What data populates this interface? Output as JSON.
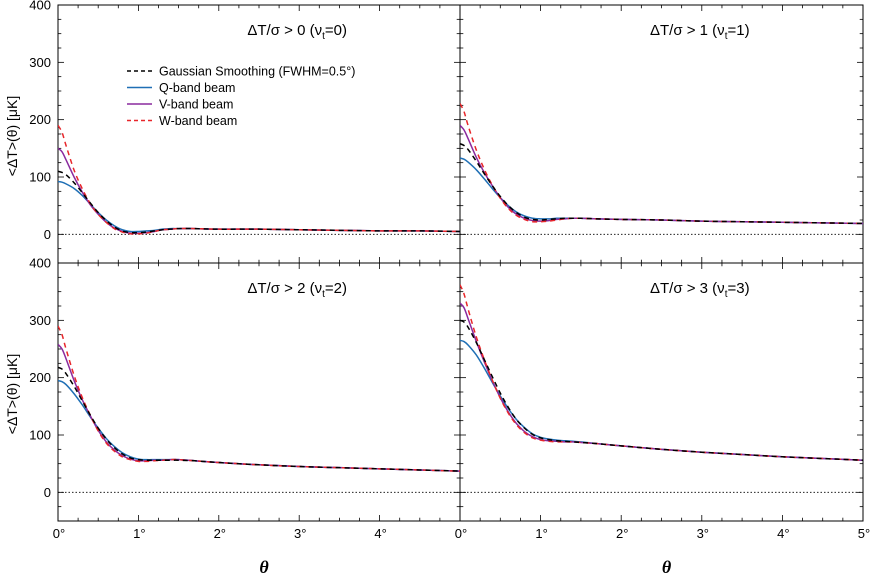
{
  "chart_data": {
    "type": "line",
    "xlabel": "θ",
    "ylabel": "<ΔT>(θ) [μK]",
    "xlim": [
      0,
      5
    ],
    "ylim": [
      -50,
      400
    ],
    "x_ticks": [
      "0°",
      "1°",
      "2°",
      "3°",
      "4°"
    ],
    "x_ticks_right": [
      "0°",
      "1°",
      "2°",
      "3°",
      "4°",
      "5°"
    ],
    "y_ticks": [
      "0",
      "100",
      "200",
      "300",
      "400"
    ],
    "legend": {
      "placement": "top-left of first panel",
      "entries": [
        {
          "label": "Gaussian Smoothing (FWHM=0.5°)",
          "color": "#000000",
          "dash": "dashed"
        },
        {
          "label": "Q-band beam",
          "color": "#1f6fb5",
          "dash": "solid"
        },
        {
          "label": "V-band beam",
          "color": "#8a2a9e",
          "dash": "solid"
        },
        {
          "label": "W-band beam",
          "color": "#e8262a",
          "dash": "dashed"
        }
      ]
    },
    "reference_line": {
      "y": 0,
      "style": "dotted"
    },
    "panels": [
      {
        "title_main": "ΔT/σ > 0 (ν",
        "title_sub": "t",
        "title_end": "=0)",
        "x": [
          0,
          0.05,
          0.1,
          0.2,
          0.3,
          0.4,
          0.5,
          0.6,
          0.7,
          0.8,
          0.9,
          1.0,
          1.1,
          1.2,
          1.3,
          1.4,
          1.5,
          1.7,
          2.0,
          2.5,
          3.0,
          3.5,
          4.0,
          4.5,
          5.0
        ],
        "series": [
          {
            "name": "Gaussian Smoothing (FWHM=0.5°)",
            "values": [
              110,
              108,
              104,
              90,
              73,
              55,
              38,
              24,
              13,
              6,
              3,
              3,
              4,
              6,
              8,
              9,
              10,
              10,
              9,
              9,
              8,
              7,
              6,
              6,
              5
            ]
          },
          {
            "name": "Q-band beam",
            "values": [
              92,
              91,
              88,
              80,
              68,
              53,
              38,
              25,
              15,
              8,
              5,
              5,
              6,
              7,
              9,
              10,
              10,
              10,
              9,
              9,
              8,
              7,
              6,
              6,
              5
            ]
          },
          {
            "name": "V-band beam",
            "values": [
              150,
              144,
              130,
              100,
              74,
              52,
              35,
              21,
              11,
              5,
              2,
              2,
              3,
              5,
              8,
              9,
              10,
              10,
              9,
              9,
              8,
              7,
              6,
              6,
              5
            ]
          },
          {
            "name": "W-band beam",
            "values": [
              190,
              178,
              155,
              112,
              80,
              54,
              35,
              21,
              10,
              4,
              1,
              1,
              2,
              5,
              8,
              9,
              10,
              10,
              9,
              9,
              8,
              7,
              6,
              6,
              5
            ]
          }
        ]
      },
      {
        "title_main": "ΔT/σ > 1 (ν",
        "title_sub": "t",
        "title_end": "=1)",
        "x": [
          0,
          0.05,
          0.1,
          0.2,
          0.3,
          0.4,
          0.5,
          0.6,
          0.7,
          0.8,
          0.9,
          1.0,
          1.1,
          1.2,
          1.3,
          1.4,
          1.5,
          1.7,
          2.0,
          2.5,
          3.0,
          3.5,
          4.0,
          4.5,
          5.0
        ],
        "series": [
          {
            "name": "Gaussian Smoothing (FWHM=0.5°)",
            "values": [
              158,
              155,
              148,
              128,
              106,
              85,
              66,
              50,
              38,
              30,
              26,
              25,
              26,
              27,
              28,
              28,
              28,
              27,
              26,
              25,
              23,
              22,
              21,
              20,
              19
            ]
          },
          {
            "name": "Q-band beam",
            "values": [
              133,
              131,
              126,
              113,
              97,
              80,
              64,
              50,
              39,
              32,
              28,
              27,
              27,
              28,
              28,
              28,
              28,
              27,
              26,
              25,
              23,
              22,
              21,
              20,
              19
            ]
          },
          {
            "name": "V-band beam",
            "values": [
              190,
              182,
              167,
              135,
              108,
              85,
              64,
              47,
              35,
              28,
              24,
              23,
              24,
              26,
              27,
              28,
              28,
              27,
              26,
              25,
              23,
              22,
              21,
              20,
              19
            ]
          },
          {
            "name": "W-band beam",
            "values": [
              228,
              214,
              190,
              148,
              114,
              86,
              63,
              45,
              33,
              26,
              22,
              22,
              23,
              25,
              27,
              28,
              28,
              27,
              26,
              25,
              23,
              22,
              21,
              20,
              19
            ]
          }
        ]
      },
      {
        "title_main": "ΔT/σ > 2 (ν",
        "title_sub": "t",
        "title_end": "=2)",
        "x": [
          0,
          0.05,
          0.1,
          0.2,
          0.3,
          0.4,
          0.5,
          0.6,
          0.7,
          0.8,
          0.9,
          1.0,
          1.1,
          1.2,
          1.3,
          1.4,
          1.5,
          1.7,
          2.0,
          2.5,
          3.0,
          3.5,
          4.0,
          4.5,
          5.0
        ],
        "series": [
          {
            "name": "Gaussian Smoothing (FWHM=0.5°)",
            "values": [
              218,
              215,
              207,
              185,
              160,
              135,
              112,
              93,
              78,
              67,
              60,
              57,
              56,
              56,
              56,
              56,
              56,
              55,
              52,
              48,
              45,
              43,
              41,
              39,
              37
            ]
          },
          {
            "name": "Q-band beam",
            "values": [
              195,
              193,
              188,
              172,
              153,
              132,
              112,
              94,
              80,
              69,
              62,
              58,
              57,
              57,
              57,
              57,
              57,
              55,
              52,
              48,
              45,
              43,
              41,
              39,
              37
            ]
          },
          {
            "name": "V-band beam",
            "values": [
              258,
              250,
              233,
              195,
              162,
              134,
              108,
              88,
              74,
              64,
              58,
              55,
              55,
              56,
              56,
              57,
              57,
              55,
              52,
              48,
              45,
              43,
              41,
              39,
              37
            ]
          },
          {
            "name": "W-band beam",
            "values": [
              290,
              275,
              250,
              204,
              166,
              135,
              107,
              86,
              72,
              62,
              57,
              54,
              54,
              55,
              56,
              57,
              57,
              55,
              52,
              48,
              45,
              43,
              41,
              39,
              37
            ]
          }
        ]
      },
      {
        "title_main": "ΔT/σ > 3 (ν",
        "title_sub": "t",
        "title_end": "=3)",
        "x": [
          0,
          0.05,
          0.1,
          0.2,
          0.3,
          0.4,
          0.5,
          0.6,
          0.7,
          0.8,
          0.9,
          1.0,
          1.1,
          1.2,
          1.3,
          1.4,
          1.5,
          1.7,
          2.0,
          2.5,
          3.0,
          3.5,
          4.0,
          4.5,
          5.0
        ],
        "series": [
          {
            "name": "Gaussian Smoothing (FWHM=0.5°)",
            "values": [
              300,
              297,
              288,
              262,
              232,
              202,
              173,
              148,
              127,
              112,
              101,
              95,
              92,
              90,
              89,
              88,
              87,
              85,
              81,
              75,
              70,
              66,
              62,
              59,
              56
            ]
          },
          {
            "name": "Q-band beam",
            "values": [
              265,
              263,
              257,
              240,
              217,
              192,
              168,
              146,
              127,
              113,
              102,
              96,
              93,
              91,
              90,
              89,
              88,
              85,
              81,
              75,
              70,
              66,
              62,
              59,
              56
            ]
          },
          {
            "name": "V-band beam",
            "values": [
              330,
              322,
              303,
              264,
              228,
              195,
              165,
              140,
              120,
              106,
              97,
              92,
              90,
              89,
              88,
              88,
              87,
              85,
              81,
              75,
              70,
              66,
              62,
              59,
              56
            ]
          },
          {
            "name": "W-band beam",
            "values": [
              362,
              346,
              320,
              272,
              232,
              196,
              164,
              138,
              118,
              104,
              95,
              91,
              89,
              88,
              88,
              88,
              87,
              85,
              81,
              75,
              70,
              66,
              62,
              59,
              56
            ]
          }
        ]
      }
    ]
  }
}
